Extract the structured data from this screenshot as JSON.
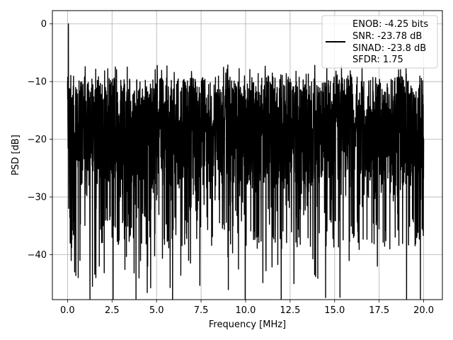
{
  "chart_data": {
    "type": "line",
    "xlabel": "Frequency [MHz]",
    "ylabel": "PSD [dB]",
    "xlim": [
      -0.85,
      21.05
    ],
    "ylim": [
      -47.8,
      2.3
    ],
    "x_ticks": [
      0.0,
      2.5,
      5.0,
      7.5,
      10.0,
      12.5,
      15.0,
      17.5,
      20.0
    ],
    "x_tick_labels": [
      "0.0",
      "2.5",
      "5.0",
      "7.5",
      "10.0",
      "12.5",
      "15.0",
      "17.5",
      "20.0"
    ],
    "y_ticks": [
      0,
      -10,
      -20,
      -30,
      -40
    ],
    "y_tick_labels": [
      "0",
      "−10",
      "−20",
      "−30",
      "−40"
    ],
    "grid": true,
    "legend_position": "top-right",
    "line_color": "#000000",
    "series": [
      {
        "name": "ENOB: -4.25 bits\nSNR: -23.78 dB\nSINAD: -23.8 dB\nSFDR: 1.75",
        "legend_lines": [
          "ENOB: -4.25 bits",
          "SNR: -23.78 dB",
          "SINAD: -23.8 dB",
          "SFDR: 1.75"
        ],
        "x": [
          0.0,
          0.05,
          0.1,
          0.15,
          0.2,
          0.3,
          0.4,
          0.5,
          0.6,
          0.7,
          1.4,
          2.0,
          4.5,
          6.8,
          9.6,
          16.3,
          17.4,
          18.1,
          20.0
        ],
        "values": [
          -10,
          0,
          -17,
          -38,
          -14,
          -30,
          -43,
          -15,
          -44,
          -41,
          -45.5,
          -35,
          -42,
          -41,
          -42.5,
          -36,
          -42,
          -39,
          -20
        ],
        "noise_floor_db": -17,
        "envelope_top_db": -7,
        "spike_low_db": -45.5
      }
    ]
  }
}
